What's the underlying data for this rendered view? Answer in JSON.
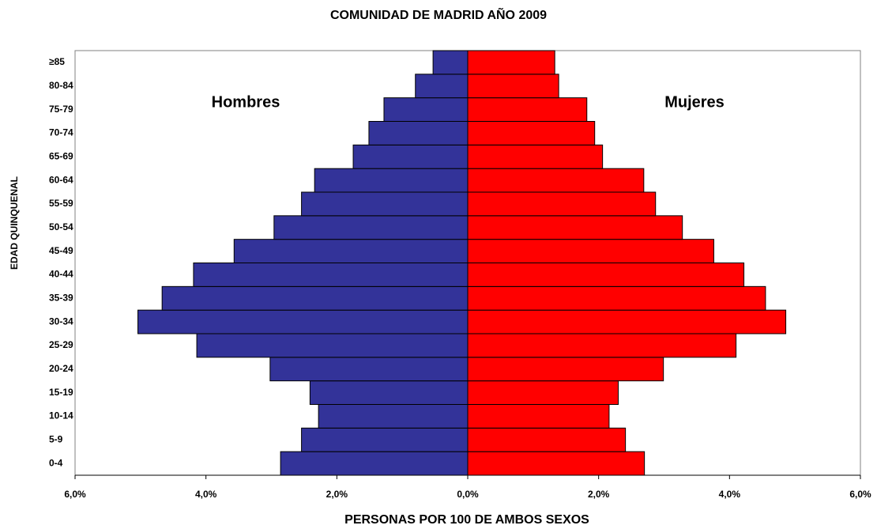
{
  "chart_data": {
    "type": "pyramid",
    "title": "COMUNIDAD DE MADRID AÑO 2009",
    "x_label": "PERSONAS POR 100 DE AMBOS SEXOS",
    "y_label": "EDAD QUINQUENAL",
    "categories": [
      "0-4",
      "5-9",
      "10-14",
      "15-19",
      "20-24",
      "25-29",
      "30-34",
      "35-39",
      "40-44",
      "45-49",
      "50-54",
      "55-59",
      "60-64",
      "65-69",
      "70-74",
      "75-79",
      "80-84",
      "≥85"
    ],
    "series": [
      {
        "name": "Hombres",
        "color": "#333399",
        "values": [
          -2.86,
          -2.54,
          -2.28,
          -2.41,
          -3.02,
          -4.14,
          -5.04,
          -4.67,
          -4.19,
          -3.57,
          -2.96,
          -2.54,
          -2.34,
          -1.75,
          -1.51,
          -1.28,
          -0.8,
          -0.53
        ]
      },
      {
        "name": "Mujeres",
        "color": "#ff0000",
        "values": [
          2.7,
          2.41,
          2.16,
          2.3,
          2.99,
          4.1,
          4.86,
          4.55,
          4.22,
          3.76,
          3.28,
          2.87,
          2.69,
          2.06,
          1.94,
          1.82,
          1.39,
          1.33
        ]
      }
    ],
    "xlim": [
      -6,
      6
    ],
    "xticks": [
      {
        "value": -6,
        "label": "6,0%"
      },
      {
        "value": -4,
        "label": "4,0%"
      },
      {
        "value": -2,
        "label": "2,0%"
      },
      {
        "value": 0,
        "label": "0,0%"
      },
      {
        "value": 2,
        "label": "2,0%"
      },
      {
        "value": 4,
        "label": "4,0%"
      },
      {
        "value": 6,
        "label": "6,0%"
      }
    ]
  }
}
